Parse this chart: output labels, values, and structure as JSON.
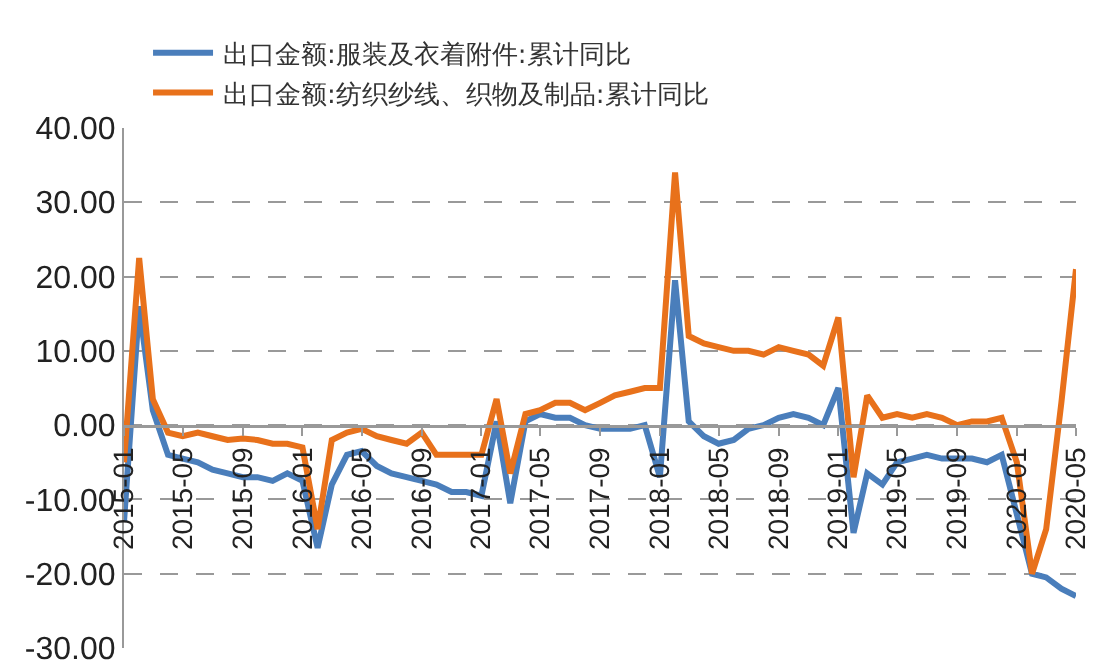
{
  "chart_data": {
    "type": "line",
    "x": [
      "2015-01",
      "2015-02",
      "2015-03",
      "2015-04",
      "2015-05",
      "2015-06",
      "2015-07",
      "2015-08",
      "2015-09",
      "2015-10",
      "2015-11",
      "2015-12",
      "2016-01",
      "2016-02",
      "2016-03",
      "2016-04",
      "2016-05",
      "2016-06",
      "2016-07",
      "2016-08",
      "2016-09",
      "2016-10",
      "2016-11",
      "2016-12",
      "2017-01",
      "2017-02",
      "2017-03",
      "2017-04",
      "2017-05",
      "2017-06",
      "2017-07",
      "2017-08",
      "2017-09",
      "2017-10",
      "2017-11",
      "2017-12",
      "2018-01",
      "2018-02",
      "2018-03",
      "2018-04",
      "2018-05",
      "2018-06",
      "2018-07",
      "2018-08",
      "2018-09",
      "2018-10",
      "2018-11",
      "2018-12",
      "2019-01",
      "2019-02",
      "2019-03",
      "2019-04",
      "2019-05",
      "2019-06",
      "2019-07",
      "2019-08",
      "2019-09",
      "2019-10",
      "2019-11",
      "2019-12",
      "2020-01",
      "2020-02",
      "2020-03",
      "2020-04",
      "2020-05"
    ],
    "series": [
      {
        "name": "出口金额:服装及衣着附件:累计同比",
        "color": "#4a7ebb",
        "values": [
          -13,
          16,
          2,
          -4,
          -4.5,
          -5,
          -6,
          -6.5,
          -7,
          -7,
          -7.5,
          -6.5,
          -7.5,
          -16.5,
          -8,
          -4,
          -3.5,
          -5.5,
          -6.5,
          -7,
          -7.5,
          -8,
          -9,
          -9,
          -9.5,
          0.5,
          -10.5,
          0.5,
          1.5,
          1,
          1,
          0,
          -0.5,
          -0.5,
          -0.5,
          0,
          -7,
          19.5,
          0.5,
          -1.5,
          -2.5,
          -2,
          -0.5,
          0,
          1,
          1.5,
          1,
          0,
          5,
          -14.5,
          -6.5,
          -8,
          -5,
          -4.5,
          -4,
          -4.5,
          -4.5,
          -4.5,
          -5,
          -4,
          -12,
          -20,
          -20.5,
          -22,
          -23
        ]
      },
      {
        "name": "出口金额:纺织纱线、织物及制品:累计同比",
        "color": "#e8711b",
        "values": [
          -5,
          22.5,
          3.5,
          -1,
          -1.5,
          -1,
          -1.5,
          -2,
          -1.8,
          -2,
          -2.5,
          -2.5,
          -3,
          -14,
          -2,
          -1,
          -0.5,
          -1.5,
          -2,
          -2.5,
          -1,
          -4,
          -4,
          -4,
          -4,
          3.5,
          -6.5,
          1.5,
          2,
          3,
          3,
          2,
          3,
          4,
          4.5,
          5,
          5,
          34,
          12,
          11,
          10.5,
          10,
          10,
          9.5,
          10.5,
          10,
          9.5,
          8,
          14.5,
          -7,
          4,
          1,
          1.5,
          1,
          1.5,
          1,
          0,
          0.5,
          0.5,
          1,
          -5,
          -20,
          -14,
          3,
          21
        ]
      }
    ],
    "ylim": [
      -30,
      40
    ],
    "yticks": [
      {
        "value": -30,
        "label": "-30.00"
      },
      {
        "value": -20,
        "label": "-20.00"
      },
      {
        "value": -10,
        "label": "-10.00"
      },
      {
        "value": 0,
        "label": "0.00"
      },
      {
        "value": 10,
        "label": "10.00"
      },
      {
        "value": 20,
        "label": "20.00"
      },
      {
        "value": 30,
        "label": "30.00"
      },
      {
        "value": 40,
        "label": "40.00"
      }
    ],
    "xlim": [
      "2015-01",
      "2020-05"
    ],
    "xticks": [
      "2015-01",
      "2015-05",
      "2015-09",
      "2016-01",
      "2016-05",
      "2016-09",
      "2017-01",
      "2017-05",
      "2017-09",
      "2018-01",
      "2018-05",
      "2018-09",
      "2019-01",
      "2019-05",
      "2019-09",
      "2020-01",
      "2020-05"
    ],
    "grid": "y",
    "legend": "top left",
    "marker": "none",
    "line_style": "solid"
  }
}
